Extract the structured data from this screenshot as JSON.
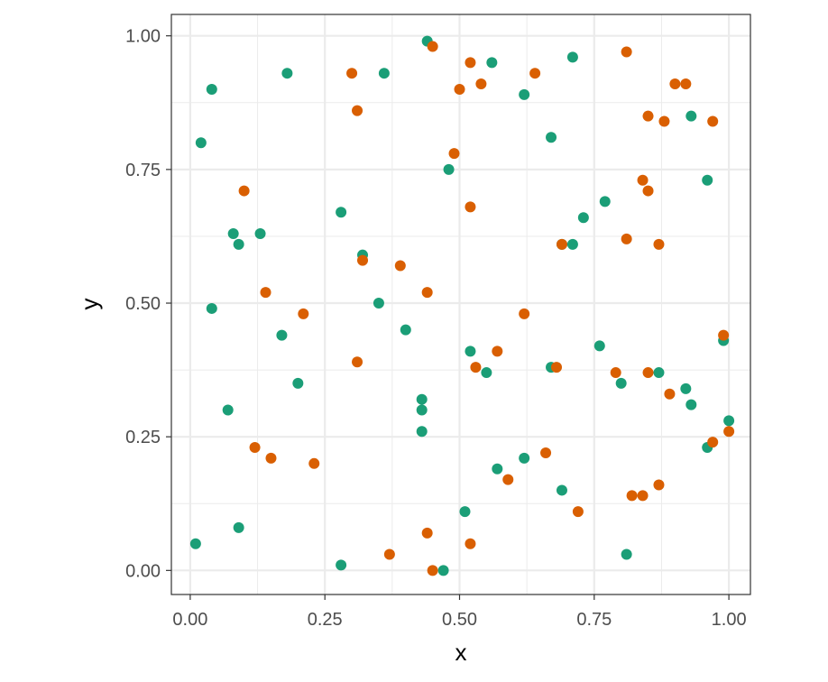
{
  "chart_data": {
    "type": "scatter",
    "xlabel": "x",
    "ylabel": "y",
    "xlim": [
      -0.035,
      1.04
    ],
    "ylim": [
      -0.045,
      1.04
    ],
    "x_ticks": [
      0,
      0.25,
      0.5,
      0.75,
      1
    ],
    "y_ticks": [
      0,
      0.25,
      0.5,
      0.75,
      1
    ],
    "x_tick_labels": [
      "0.00",
      "0.25",
      "0.50",
      "0.75",
      "1.00"
    ],
    "y_tick_labels": [
      "0.00",
      "0.25",
      "0.50",
      "0.75",
      "1.00"
    ],
    "grid": true,
    "colors": {
      "green": "#1b9e77",
      "orange": "#d95f02",
      "grid": "#ebebeb",
      "border": "#333333"
    },
    "series": [
      {
        "color": "#1b9e77",
        "points": [
          [
            0.44,
            0.99
          ],
          [
            0.04,
            0.9
          ],
          [
            0.18,
            0.93
          ],
          [
            0.36,
            0.93
          ],
          [
            0.56,
            0.95
          ],
          [
            0.71,
            0.96
          ],
          [
            0.62,
            0.89
          ],
          [
            0.02,
            0.8
          ],
          [
            0.67,
            0.81
          ],
          [
            0.48,
            0.75
          ],
          [
            0.93,
            0.85
          ],
          [
            0.96,
            0.73
          ],
          [
            0.77,
            0.69
          ],
          [
            0.73,
            0.66
          ],
          [
            0.28,
            0.67
          ],
          [
            0.08,
            0.63
          ],
          [
            0.13,
            0.63
          ],
          [
            0.09,
            0.61
          ],
          [
            0.32,
            0.59
          ],
          [
            0.69,
            0.61
          ],
          [
            0.71,
            0.61
          ],
          [
            0.35,
            0.5
          ],
          [
            0.04,
            0.49
          ],
          [
            0.4,
            0.45
          ],
          [
            0.17,
            0.44
          ],
          [
            0.52,
            0.41
          ],
          [
            0.76,
            0.42
          ],
          [
            0.99,
            0.43
          ],
          [
            0.67,
            0.38
          ],
          [
            0.55,
            0.37
          ],
          [
            0.87,
            0.37
          ],
          [
            0.8,
            0.35
          ],
          [
            0.2,
            0.35
          ],
          [
            0.92,
            0.34
          ],
          [
            0.43,
            0.32
          ],
          [
            0.43,
            0.3
          ],
          [
            0.93,
            0.31
          ],
          [
            0.07,
            0.3
          ],
          [
            1.0,
            0.28
          ],
          [
            0.43,
            0.26
          ],
          [
            0.96,
            0.23
          ],
          [
            0.57,
            0.19
          ],
          [
            0.62,
            0.21
          ],
          [
            0.69,
            0.15
          ],
          [
            0.51,
            0.11
          ],
          [
            0.09,
            0.08
          ],
          [
            0.01,
            0.05
          ],
          [
            0.81,
            0.03
          ],
          [
            0.28,
            0.01
          ],
          [
            0.47,
            0.0
          ]
        ]
      },
      {
        "color": "#d95f02",
        "points": [
          [
            0.45,
            0.98
          ],
          [
            0.3,
            0.93
          ],
          [
            0.52,
            0.95
          ],
          [
            0.64,
            0.93
          ],
          [
            0.81,
            0.97
          ],
          [
            0.5,
            0.9
          ],
          [
            0.54,
            0.91
          ],
          [
            0.9,
            0.91
          ],
          [
            0.92,
            0.91
          ],
          [
            0.31,
            0.86
          ],
          [
            0.85,
            0.85
          ],
          [
            0.88,
            0.84
          ],
          [
            0.97,
            0.84
          ],
          [
            0.49,
            0.78
          ],
          [
            0.1,
            0.71
          ],
          [
            0.84,
            0.73
          ],
          [
            0.85,
            0.71
          ],
          [
            0.52,
            0.68
          ],
          [
            0.81,
            0.62
          ],
          [
            0.87,
            0.61
          ],
          [
            0.69,
            0.61
          ],
          [
            0.32,
            0.58
          ],
          [
            0.39,
            0.57
          ],
          [
            0.14,
            0.52
          ],
          [
            0.44,
            0.52
          ],
          [
            0.21,
            0.48
          ],
          [
            0.62,
            0.48
          ],
          [
            0.99,
            0.44
          ],
          [
            0.57,
            0.41
          ],
          [
            0.31,
            0.39
          ],
          [
            0.53,
            0.38
          ],
          [
            0.68,
            0.38
          ],
          [
            0.79,
            0.37
          ],
          [
            0.85,
            0.37
          ],
          [
            0.89,
            0.33
          ],
          [
            0.97,
            0.24
          ],
          [
            1.0,
            0.26
          ],
          [
            0.12,
            0.23
          ],
          [
            0.15,
            0.21
          ],
          [
            0.23,
            0.2
          ],
          [
            0.66,
            0.22
          ],
          [
            0.59,
            0.17
          ],
          [
            0.82,
            0.14
          ],
          [
            0.84,
            0.14
          ],
          [
            0.87,
            0.16
          ],
          [
            0.72,
            0.11
          ],
          [
            0.44,
            0.07
          ],
          [
            0.52,
            0.05
          ],
          [
            0.37,
            0.03
          ],
          [
            0.45,
            0.0
          ]
        ]
      }
    ]
  }
}
